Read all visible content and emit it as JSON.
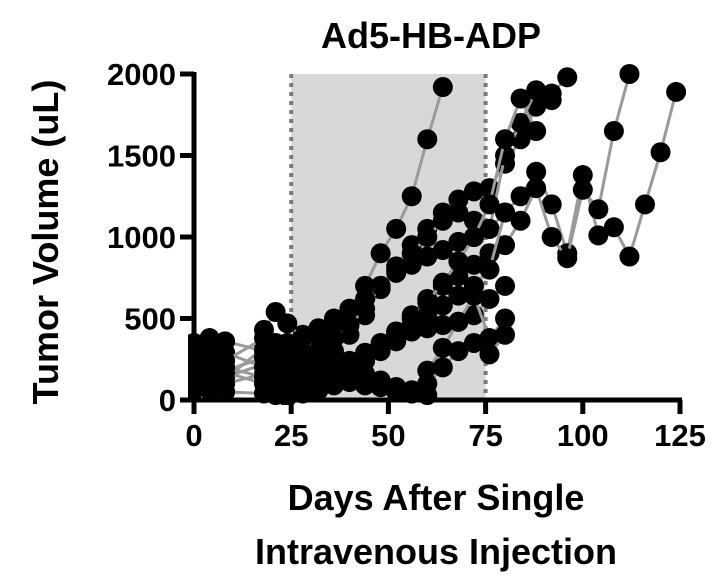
{
  "chart_data": {
    "type": "line",
    "title": "Ad5-HB-ADP",
    "xlabel": [
      "Days After Single",
      "Intravenous Injection"
    ],
    "ylabel": "Tumor Volume (uL)",
    "xlim": [
      0,
      125
    ],
    "ylim": [
      0,
      2000
    ],
    "xticks": [
      0,
      25,
      50,
      75,
      100,
      125
    ],
    "yticks": [
      0,
      500,
      1000,
      1500,
      2000
    ],
    "xtick_labels": [
      "0",
      "25",
      "50",
      "75",
      "100",
      "125"
    ],
    "ytick_labels": [
      "0",
      "500",
      "1000",
      "1500",
      "2000"
    ],
    "grid": false,
    "legend": "none",
    "shaded_region": {
      "x": [
        25,
        75
      ],
      "color": "#d8d8d8",
      "dashed_edges": true
    },
    "colors": {
      "line": "#9a9a9a",
      "marker": "#000000",
      "shade": "#d8d8d8",
      "edge": "#7a7a7a"
    },
    "series": [
      {
        "x": [
          0,
          4,
          8,
          18,
          21,
          24,
          28,
          32,
          36,
          40,
          44,
          48,
          52,
          56,
          60,
          64
        ],
        "y": [
          180,
          160,
          140,
          220,
          260,
          230,
          300,
          380,
          460,
          560,
          700,
          900,
          1050,
          1250,
          1600,
          1920
        ]
      },
      {
        "x": [
          0,
          4,
          8,
          18,
          21,
          24,
          28,
          32,
          36,
          40,
          44,
          48,
          52,
          56,
          60,
          64,
          68,
          72,
          76,
          80,
          84,
          88,
          92,
          96
        ],
        "y": [
          280,
          310,
          290,
          200,
          160,
          140,
          190,
          240,
          300,
          400,
          520,
          680,
          820,
          950,
          1050,
          1150,
          1230,
          1280,
          1300,
          1450,
          1600,
          1800,
          1880,
          1980
        ]
      },
      {
        "x": [
          0,
          4,
          8,
          18,
          21,
          24,
          28,
          32,
          36,
          40,
          44,
          48,
          52,
          56,
          60,
          64,
          68,
          72,
          76,
          80,
          84,
          88,
          92
        ],
        "y": [
          120,
          160,
          130,
          320,
          260,
          300,
          350,
          330,
          380,
          460,
          560,
          700,
          800,
          900,
          1000,
          1100,
          1150,
          1100,
          1050,
          1500,
          1700,
          1900,
          1840
        ]
      },
      {
        "x": [
          0,
          4,
          8,
          18,
          21,
          24,
          28,
          32,
          36,
          40,
          44,
          48,
          52,
          56,
          60,
          64,
          68,
          72,
          76,
          80,
          84,
          88,
          92,
          96,
          100,
          104,
          108,
          112,
          116,
          120,
          124
        ],
        "y": [
          220,
          200,
          180,
          260,
          300,
          330,
          400,
          440,
          500,
          560,
          620,
          700,
          780,
          830,
          880,
          920,
          970,
          1000,
          1050,
          1150,
          1250,
          1400,
          1200,
          900,
          1380,
          1010,
          1060,
          880,
          1200,
          1520,
          1890
        ]
      },
      {
        "x": [
          0,
          4,
          8,
          18,
          21,
          24,
          28,
          32,
          36,
          40,
          44,
          48,
          52,
          56,
          60,
          64,
          68,
          72,
          76,
          80,
          84,
          88,
          92,
          96,
          100,
          104,
          108,
          112
        ],
        "y": [
          80,
          60,
          100,
          160,
          120,
          100,
          110,
          140,
          160,
          200,
          250,
          320,
          420,
          520,
          620,
          700,
          760,
          830,
          900,
          950,
          1100,
          1300,
          1000,
          870,
          1290,
          1170,
          1650,
          2000
        ]
      },
      {
        "x": [
          0,
          4,
          8,
          18,
          21,
          24,
          28,
          32,
          36,
          40,
          44,
          48,
          52,
          56,
          60,
          64,
          68,
          72,
          76,
          80,
          84,
          88
        ],
        "y": [
          350,
          380,
          360,
          300,
          340,
          350,
          280,
          230,
          200,
          240,
          290,
          350,
          420,
          500,
          600,
          720,
          850,
          1000,
          1200,
          1600,
          1850,
          1650
        ]
      },
      {
        "x": [
          0,
          4,
          8,
          18,
          21,
          24,
          28,
          32,
          36,
          40,
          44,
          48,
          52,
          56,
          60,
          64,
          68,
          72,
          76,
          80
        ],
        "y": [
          150,
          130,
          170,
          100,
          80,
          60,
          90,
          120,
          160,
          200,
          260,
          330,
          400,
          460,
          520,
          580,
          640,
          700,
          800,
          1150
        ]
      },
      {
        "x": [
          0,
          4,
          8,
          18,
          21,
          24,
          28,
          32,
          36,
          40,
          44,
          48,
          52,
          56,
          60,
          64,
          68,
          72,
          76,
          80
        ],
        "y": [
          250,
          230,
          200,
          140,
          110,
          90,
          70,
          80,
          120,
          180,
          240,
          300,
          360,
          420,
          440,
          460,
          480,
          520,
          620,
          700
        ]
      },
      {
        "x": [
          0,
          4,
          8,
          18,
          21,
          24,
          28,
          32,
          36,
          40,
          44,
          48,
          52,
          56,
          60,
          64,
          68,
          72,
          76,
          80
        ],
        "y": [
          190,
          210,
          240,
          380,
          350,
          300,
          230,
          180,
          140,
          110,
          90,
          80,
          70,
          60,
          180,
          320,
          480,
          640,
          380,
          500
        ]
      },
      {
        "x": [
          0,
          4,
          8,
          18,
          21,
          24,
          28,
          32,
          36,
          40,
          44,
          48,
          52,
          56,
          60,
          64,
          68,
          72,
          76,
          80
        ],
        "y": [
          60,
          80,
          50,
          40,
          30,
          20,
          40,
          60,
          90,
          120,
          100,
          80,
          50,
          40,
          100,
          200,
          300,
          350,
          280,
          400
        ]
      },
      {
        "x": [
          18,
          21,
          24,
          28,
          32,
          36,
          40,
          44,
          48,
          52,
          56,
          60
        ],
        "y": [
          430,
          540,
          470,
          380,
          300,
          250,
          210,
          160,
          120,
          80,
          40,
          30
        ]
      }
    ]
  }
}
